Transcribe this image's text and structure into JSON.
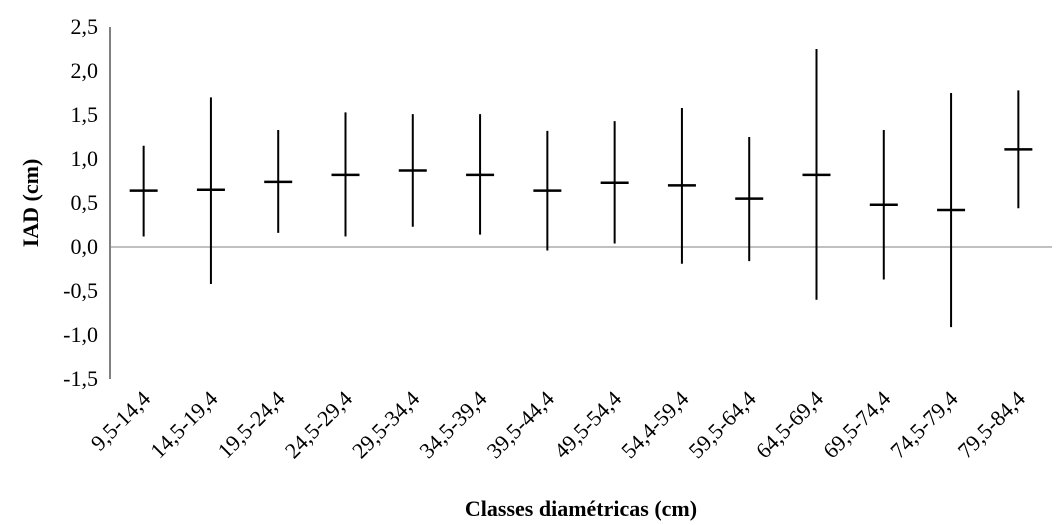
{
  "chart_data": {
    "type": "errorbar",
    "title": "",
    "xlabel": "Classes diamétricas (cm)",
    "ylabel": "IAD (cm)",
    "ylim": [
      -1.5,
      2.5
    ],
    "ytick_values": [
      2.5,
      2.0,
      1.5,
      1.0,
      0.5,
      0.0,
      -0.5,
      -1.0,
      -1.5
    ],
    "ytick_labels": [
      "2,5",
      "2,0",
      "1,5",
      "1,0",
      "0,5",
      "0,0",
      "-0,5",
      "-1,0",
      "-1,5"
    ],
    "categories": [
      "9,5-14,4",
      "14,5-19,4",
      "19,5-24,4",
      "24,5-29,4",
      "29,5-34,4",
      "34,5-39,4",
      "39,5-44,4",
      "49,5-54,4",
      "54,4-59,4",
      "59,5-64,4",
      "64,5-69,4",
      "69,5-74,4",
      "74,5-79,4",
      "79,5-84,4"
    ],
    "mean": [
      0.64,
      0.65,
      0.74,
      0.82,
      0.87,
      0.82,
      0.64,
      0.73,
      0.7,
      0.55,
      0.82,
      0.48,
      0.42,
      1.11
    ],
    "lower": [
      0.12,
      -0.42,
      0.16,
      0.12,
      0.23,
      0.14,
      -0.04,
      0.04,
      -0.19,
      -0.16,
      -0.6,
      -0.37,
      -0.91,
      0.44
    ],
    "upper": [
      1.15,
      1.7,
      1.33,
      1.53,
      1.51,
      1.51,
      1.32,
      1.43,
      1.58,
      1.25,
      2.25,
      1.33,
      1.75,
      1.78
    ],
    "grid": false,
    "zero_line": true
  }
}
